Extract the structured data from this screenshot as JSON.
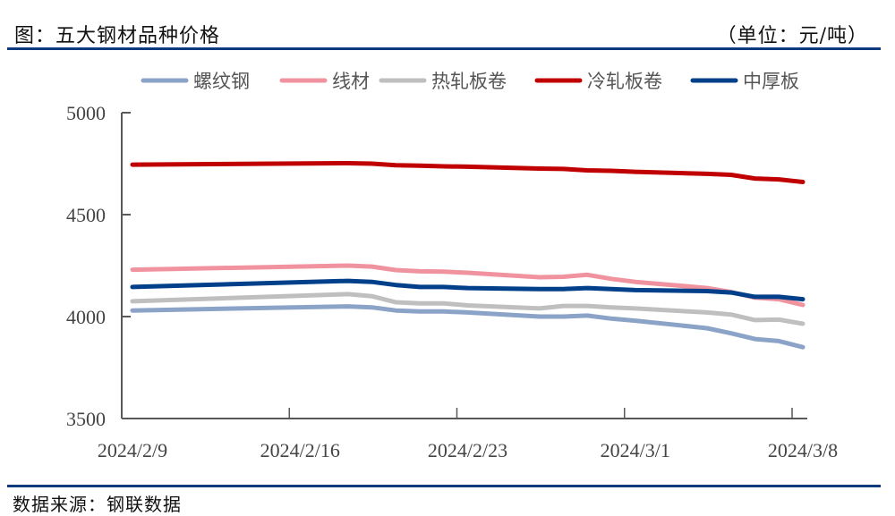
{
  "header": {
    "title": "图：五大钢材品种价格",
    "unit": "（单位：元/吨）"
  },
  "footer": {
    "source": "数据来源：钢联数据"
  },
  "colors": {
    "rule": "#0d3a7e",
    "axis": "#595959"
  },
  "chart_data": {
    "type": "line",
    "title": "五大钢材品种价格",
    "xlabel": "",
    "ylabel": "元/吨",
    "ylim": [
      3500,
      5000
    ],
    "yticks": [
      3500,
      4000,
      4500,
      5000
    ],
    "xticks": [
      "2024/2/9",
      "2024/2/16",
      "2024/2/23",
      "2024/3/1",
      "2024/3/8"
    ],
    "grid": false,
    "legend_position": "top",
    "x": [
      "2024/2/9",
      "2024/2/18",
      "2024/2/19",
      "2024/2/20",
      "2024/2/21",
      "2024/2/22",
      "2024/2/23",
      "2024/2/26",
      "2024/2/27",
      "2024/2/28",
      "2024/2/29",
      "2024/3/1",
      "2024/3/4",
      "2024/3/5",
      "2024/3/6",
      "2024/3/7",
      "2024/3/8"
    ],
    "series": [
      {
        "name": "螺纹钢",
        "color": "#8ba3c7",
        "values": [
          4030,
          4050,
          4045,
          4030,
          4025,
          4025,
          4020,
          4000,
          4000,
          4005,
          3990,
          3980,
          3943,
          3918,
          3890,
          3880,
          3850
        ]
      },
      {
        "name": "线材",
        "color": "#f0939e",
        "values": [
          4230,
          4250,
          4245,
          4228,
          4222,
          4220,
          4215,
          4193,
          4195,
          4205,
          4185,
          4170,
          4140,
          4120,
          4093,
          4085,
          4057
        ]
      },
      {
        "name": "热轧板卷",
        "color": "#bfbfbf",
        "values": [
          4075,
          4110,
          4100,
          4070,
          4065,
          4065,
          4055,
          4040,
          4052,
          4052,
          4045,
          4040,
          4020,
          4010,
          3983,
          3985,
          3965
        ]
      },
      {
        "name": "冷轧板卷",
        "color": "#c00000",
        "values": [
          4745,
          4752,
          4750,
          4742,
          4740,
          4737,
          4735,
          4726,
          4724,
          4717,
          4715,
          4710,
          4700,
          4695,
          4677,
          4673,
          4660
        ]
      },
      {
        "name": "中厚板",
        "color": "#003f8a",
        "values": [
          4145,
          4175,
          4170,
          4155,
          4145,
          4145,
          4140,
          4135,
          4135,
          4140,
          4135,
          4130,
          4125,
          4118,
          4097,
          4097,
          4085
        ]
      }
    ]
  }
}
